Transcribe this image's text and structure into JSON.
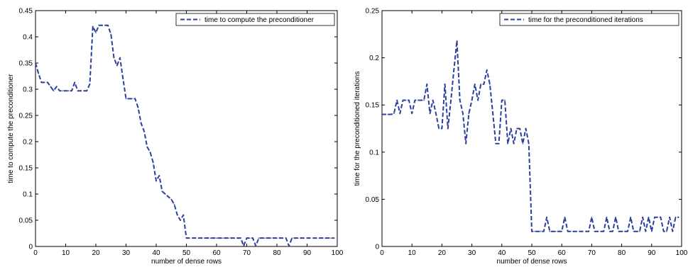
{
  "chart_data": [
    {
      "type": "line",
      "xlabel": "number of dense rows",
      "ylabel": "time to compute the preconditioner",
      "xlim": [
        0,
        100
      ],
      "ylim": [
        0,
        0.45
      ],
      "xticks": [
        0,
        10,
        20,
        30,
        40,
        50,
        60,
        70,
        80,
        90,
        100
      ],
      "xtick_labels": [
        "0",
        "10",
        "20",
        "30",
        "40",
        "50",
        "60",
        "70",
        "80",
        "90",
        "100"
      ],
      "yticks": [
        0,
        0.05,
        0.1,
        0.15,
        0.2,
        0.25,
        0.3,
        0.35,
        0.4,
        0.45
      ],
      "ytick_labels": [
        "0",
        "0.05",
        "0.1",
        "0.15",
        "0.2",
        "0.25",
        "0.3",
        "0.35",
        "0.4",
        "0.45"
      ],
      "legend_position": "top-right",
      "series": [
        {
          "name": "time to compute the preconditioner",
          "color": "#2b3f9e",
          "style": "dashed",
          "x": [
            0,
            1,
            2,
            3,
            4,
            5,
            6,
            7,
            8,
            9,
            10,
            11,
            12,
            13,
            14,
            15,
            16,
            17,
            18,
            19,
            20,
            21,
            22,
            23,
            24,
            25,
            26,
            27,
            28,
            29,
            30,
            31,
            32,
            33,
            34,
            35,
            36,
            37,
            38,
            39,
            40,
            41,
            42,
            43,
            44,
            45,
            46,
            47,
            48,
            49,
            50,
            51,
            52,
            53,
            54,
            55,
            56,
            57,
            58,
            59,
            60,
            61,
            62,
            63,
            64,
            65,
            66,
            67,
            68,
            69,
            70,
            71,
            72,
            73,
            74,
            75,
            76,
            77,
            78,
            79,
            80,
            81,
            82,
            83,
            84,
            85,
            86,
            87,
            88,
            89,
            90,
            91,
            92,
            93,
            94,
            95,
            96,
            97,
            98,
            99
          ],
          "y": [
            0.35,
            0.33,
            0.313,
            0.313,
            0.313,
            0.305,
            0.297,
            0.305,
            0.297,
            0.297,
            0.297,
            0.297,
            0.297,
            0.313,
            0.297,
            0.297,
            0.297,
            0.297,
            0.31,
            0.42,
            0.408,
            0.422,
            0.422,
            0.422,
            0.422,
            0.405,
            0.36,
            0.345,
            0.36,
            0.32,
            0.282,
            0.282,
            0.282,
            0.282,
            0.265,
            0.235,
            0.22,
            0.19,
            0.18,
            0.16,
            0.125,
            0.135,
            0.105,
            0.1,
            0.095,
            0.09,
            0.08,
            0.06,
            0.05,
            0.06,
            0.016,
            0.016,
            0.016,
            0.016,
            0.016,
            0.016,
            0.016,
            0.016,
            0.016,
            0.016,
            0.016,
            0.016,
            0.016,
            0.016,
            0.016,
            0.016,
            0.016,
            0.016,
            0.016,
            0.001,
            0.016,
            0.016,
            0.016,
            0.001,
            0.016,
            0.016,
            0.016,
            0.016,
            0.016,
            0.016,
            0.016,
            0.016,
            0.016,
            0.016,
            0.001,
            0.016,
            0.016,
            0.016,
            0.016,
            0.016,
            0.016,
            0.016,
            0.016,
            0.016,
            0.016,
            0.016,
            0.016,
            0.016,
            0.016,
            0.016
          ]
        }
      ]
    },
    {
      "type": "line",
      "xlabel": "number of dense rows",
      "ylabel": "time for the preconditioned iterations",
      "xlim": [
        0,
        100
      ],
      "ylim": [
        0,
        0.25
      ],
      "xticks": [
        0,
        10,
        20,
        30,
        40,
        50,
        60,
        70,
        80,
        90,
        100
      ],
      "xtick_labels": [
        "0",
        "10",
        "20",
        "30",
        "40",
        "50",
        "60",
        "70",
        "80",
        "90",
        "100"
      ],
      "yticks": [
        0,
        0.05,
        0.1,
        0.15,
        0.2,
        0.25
      ],
      "ytick_labels": [
        "0",
        "0.05",
        "0.1",
        "0.15",
        "0.2",
        "0.25"
      ],
      "legend_position": "top-right",
      "series": [
        {
          "name": "time for the preconditioned iterations",
          "color": "#2b3f9e",
          "style": "dashed",
          "x": [
            0,
            1,
            2,
            3,
            4,
            5,
            6,
            7,
            8,
            9,
            10,
            11,
            12,
            13,
            14,
            15,
            16,
            17,
            18,
            19,
            20,
            21,
            22,
            23,
            24,
            25,
            26,
            27,
            28,
            29,
            30,
            31,
            32,
            33,
            34,
            35,
            36,
            37,
            38,
            39,
            40,
            41,
            42,
            43,
            44,
            45,
            46,
            47,
            48,
            49,
            50,
            51,
            52,
            53,
            54,
            55,
            56,
            57,
            58,
            59,
            60,
            61,
            62,
            63,
            64,
            65,
            66,
            67,
            68,
            69,
            70,
            71,
            72,
            73,
            74,
            75,
            76,
            77,
            78,
            79,
            80,
            81,
            82,
            83,
            84,
            85,
            86,
            87,
            88,
            89,
            90,
            91,
            92,
            93,
            94,
            95,
            96,
            97,
            98,
            99
          ],
          "y": [
            0.14,
            0.14,
            0.14,
            0.14,
            0.141,
            0.155,
            0.141,
            0.155,
            0.155,
            0.155,
            0.141,
            0.155,
            0.155,
            0.155,
            0.155,
            0.172,
            0.141,
            0.155,
            0.141,
            0.125,
            0.125,
            0.172,
            0.125,
            0.155,
            0.187,
            0.218,
            0.155,
            0.141,
            0.109,
            0.141,
            0.155,
            0.172,
            0.155,
            0.172,
            0.172,
            0.187,
            0.172,
            0.141,
            0.109,
            0.109,
            0.155,
            0.155,
            0.109,
            0.125,
            0.109,
            0.125,
            0.125,
            0.109,
            0.125,
            0.109,
            0.016,
            0.016,
            0.016,
            0.016,
            0.016,
            0.031,
            0.016,
            0.016,
            0.016,
            0.016,
            0.016,
            0.031,
            0.016,
            0.016,
            0.016,
            0.016,
            0.016,
            0.016,
            0.016,
            0.016,
            0.031,
            0.016,
            0.016,
            0.016,
            0.016,
            0.031,
            0.016,
            0.016,
            0.031,
            0.016,
            0.016,
            0.016,
            0.016,
            0.031,
            0.016,
            0.016,
            0.016,
            0.031,
            0.016,
            0.031,
            0.016,
            0.031,
            0.031,
            0.031,
            0.016,
            0.016,
            0.031,
            0.016,
            0.031,
            0.031
          ]
        }
      ]
    }
  ]
}
